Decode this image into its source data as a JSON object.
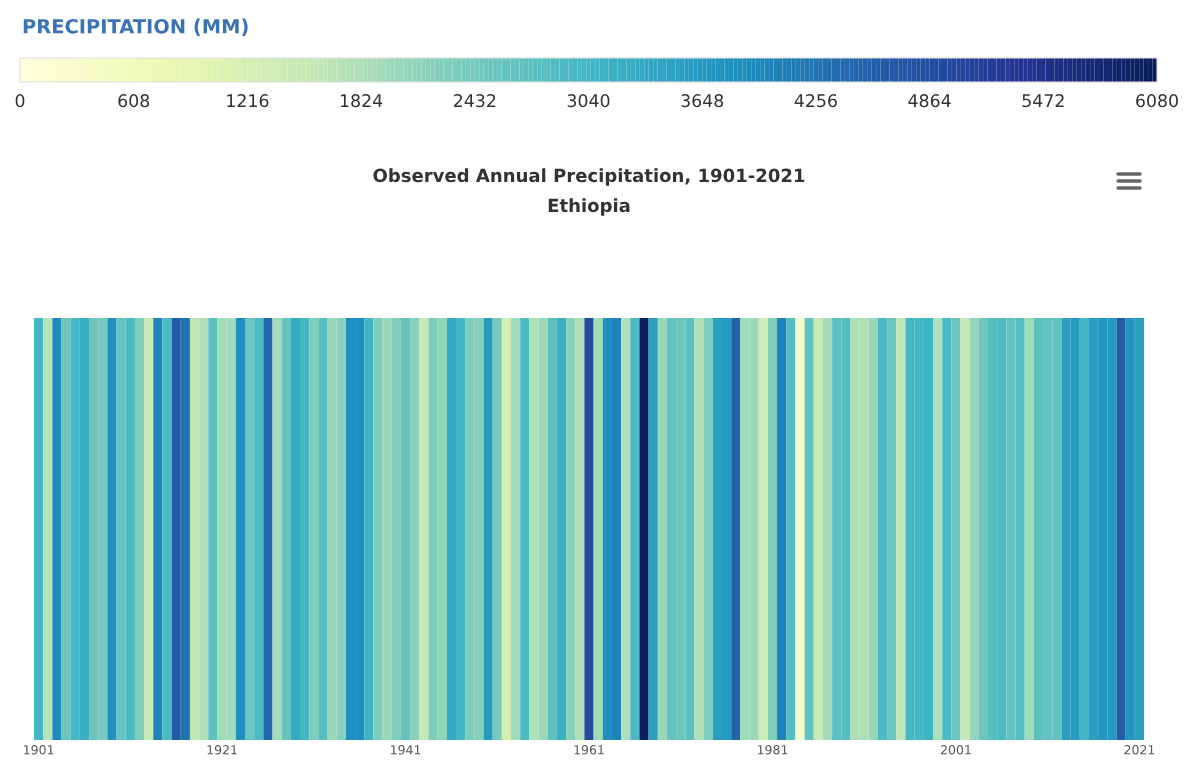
{
  "chart_data": {
    "type": "heatmap",
    "title": "Observed Annual Precipitation, 1901-2021",
    "subtitle": "Ethiopia",
    "clabel": "PRECIPITATION (MM)",
    "categories": [
      "1901",
      null,
      null,
      null,
      null,
      null,
      null,
      null,
      null,
      null,
      null,
      null,
      null,
      null,
      null,
      null,
      null,
      null,
      null,
      null,
      "1921",
      null,
      null,
      null,
      null,
      null,
      null,
      null,
      null,
      null,
      null,
      null,
      null,
      null,
      null,
      null,
      null,
      null,
      null,
      null,
      "1941",
      null,
      null,
      null,
      null,
      null,
      null,
      null,
      null,
      null,
      null,
      null,
      null,
      null,
      null,
      null,
      null,
      null,
      null,
      null,
      "1961",
      null,
      null,
      null,
      null,
      null,
      null,
      null,
      null,
      null,
      null,
      null,
      null,
      null,
      null,
      null,
      null,
      null,
      null,
      null,
      "1981",
      null,
      null,
      null,
      null,
      null,
      null,
      null,
      null,
      null,
      null,
      null,
      null,
      null,
      null,
      null,
      null,
      null,
      null,
      null,
      "2001",
      null,
      null,
      null,
      null,
      null,
      null,
      null,
      null,
      null,
      null,
      null,
      null,
      null,
      null,
      null,
      null,
      null,
      null,
      null,
      "2021"
    ],
    "y_categories": [
      null
    ],
    "cells": [
      [
        3000,
        1700,
        3900,
        2500,
        3000,
        3200,
        2500,
        2400,
        3800,
        2600,
        2900,
        2300,
        1500,
        4000,
        2900,
        4600,
        4200,
        1600,
        1800,
        2700,
        1900,
        1900,
        3800,
        2500,
        2900,
        4400,
        1900,
        2600,
        3300,
        3000,
        2300,
        2800,
        2000,
        2200,
        3800,
        3800,
        3100,
        2300,
        2000,
        2300,
        2600,
        2200,
        1500,
        2300,
        2100,
        3300,
        3000,
        2300,
        2200,
        3600,
        2400,
        1300,
        1900,
        2900,
        1800,
        2000,
        2700,
        3200,
        2200,
        1800,
        4900,
        1900,
        3800,
        4000,
        1800,
        2900,
        6000,
        3500,
        2000,
        2600,
        2500,
        2700,
        1800,
        2300,
        3500,
        3600,
        4500,
        1900,
        2000,
        1400,
        2300,
        4000,
        2800,
        300,
        2600,
        1500,
        1900,
        2700,
        2800,
        1800,
        1800,
        2000,
        2900,
        2500,
        1600,
        3000,
        3000,
        3100,
        1800,
        2900,
        2500,
        1500,
        2100,
        2500,
        2800,
        2900,
        2600,
        2800,
        1900,
        2700,
        2600,
        2600,
        3500,
        3600,
        3000,
        3500,
        3700,
        3600,
        4600,
        3700,
        3500
      ]
    ],
    "clim": [
      0,
      6080
    ],
    "cticks": [
      0,
      608,
      1216,
      1824,
      2432,
      3040,
      3648,
      4256,
      4864,
      5472,
      6080
    ]
  }
}
